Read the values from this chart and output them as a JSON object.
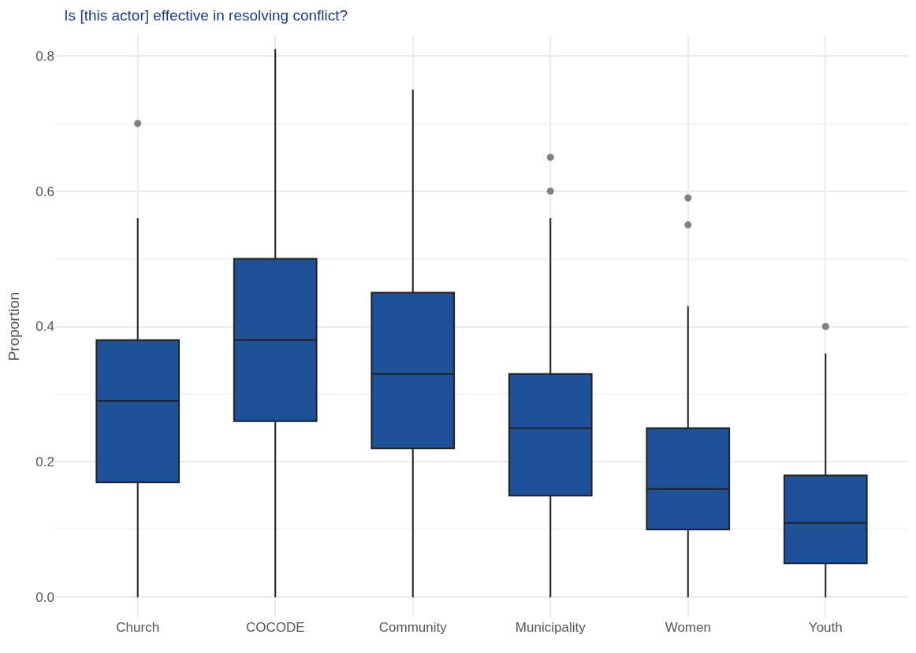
{
  "chart_data": {
    "type": "box",
    "title": "Is [this actor] effective in resolving conflict?",
    "ylabel": "Proportion",
    "categories": [
      "Church",
      "COCODE",
      "Community",
      "Municipality",
      "Women",
      "Youth"
    ],
    "boxes": [
      {
        "low": 0,
        "q1": 0.17,
        "median": 0.29,
        "q3": 0.38,
        "high": 0.56,
        "outliers": [
          0.7
        ]
      },
      {
        "low": 0,
        "q1": 0.26,
        "median": 0.38,
        "q3": 0.5,
        "high": 0.81
      },
      {
        "low": 0,
        "q1": 0.22,
        "median": 0.33,
        "q3": 0.45,
        "high": 0.75
      },
      {
        "low": 0,
        "q1": 0.15,
        "median": 0.25,
        "q3": 0.33,
        "high": 0.56,
        "outliers": [
          0.65,
          0.6
        ]
      },
      {
        "low": 0,
        "q1": 0.1,
        "median": 0.16,
        "q3": 0.25,
        "high": 0.43,
        "outliers": [
          0.59,
          0.55
        ]
      },
      {
        "low": 0,
        "q1": 0.05,
        "median": 0.11,
        "q3": 0.18,
        "high": 0.36,
        "outliers": [
          0.4
        ]
      }
    ],
    "color": "#1f5199",
    "ylim": [
      -0.03,
      0.83
    ],
    "yticks": [
      {
        "value": 0,
        "label": "0.0"
      },
      0.2,
      0.4,
      0.6,
      0.8
    ],
    "grid": true
  }
}
